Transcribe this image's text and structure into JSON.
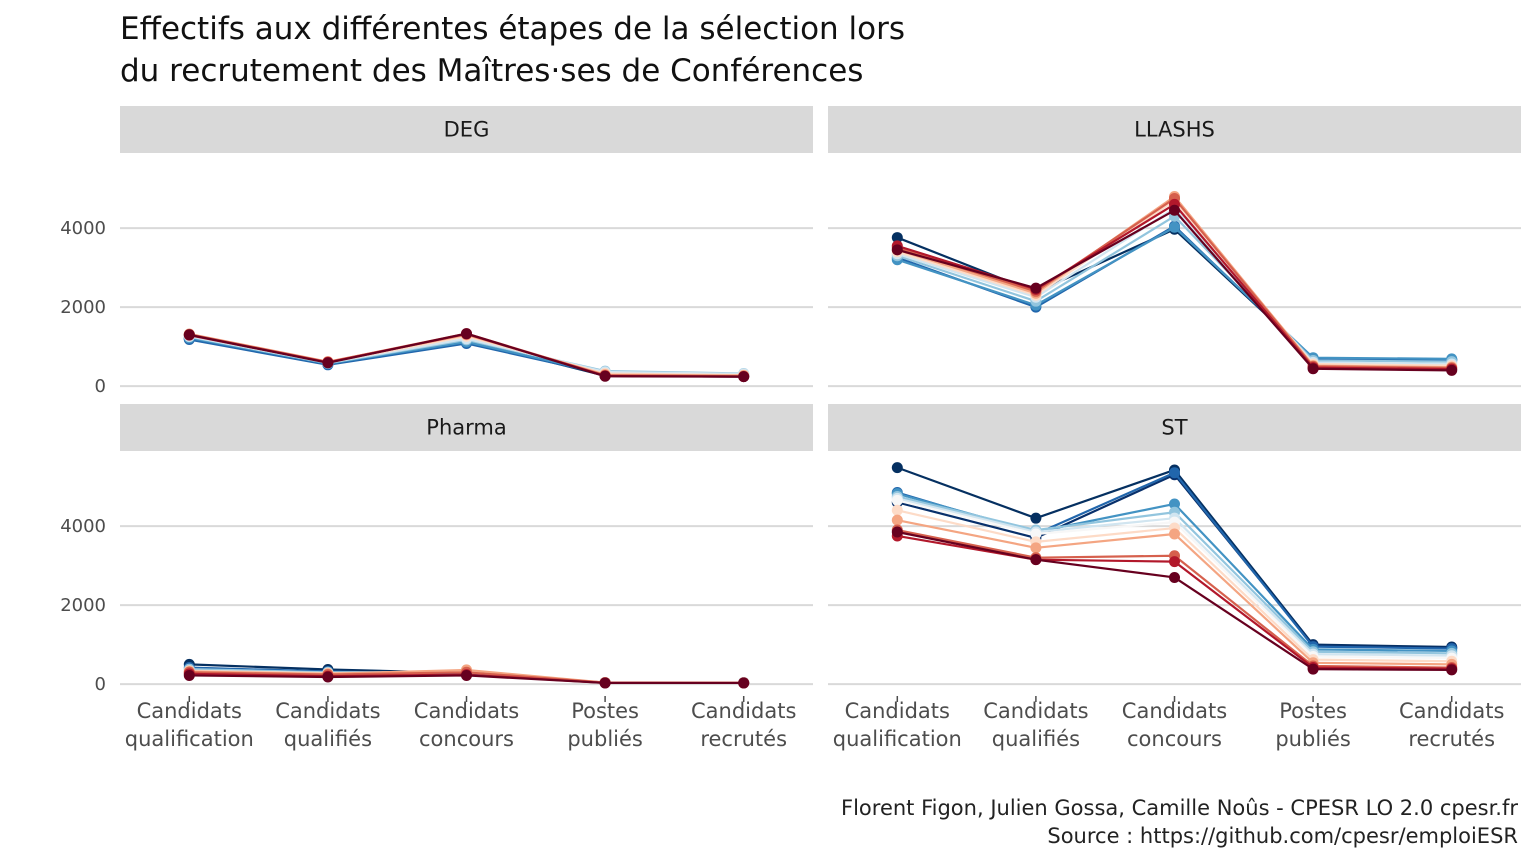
{
  "title_lines": [
    "Effectifs aux différentes étapes de la sélection lors",
    "du recrutement des Maîtres·ses de Conférences"
  ],
  "caption_lines": [
    "Florent Figon, Julien Gossa, Camille Noûs - CPESR LO 2.0 cpesr.fr",
    "Source : https://github.com/cpesr/emploiESR"
  ],
  "chart_data": {
    "type": "line",
    "layout": "facets-2x2",
    "categories": [
      [
        "Candidats",
        "qualification"
      ],
      [
        "Candidats",
        "qualifiés"
      ],
      [
        "Candidats",
        "concours"
      ],
      [
        "Postes",
        "publiés"
      ],
      [
        "Candidats",
        "recrutés"
      ]
    ],
    "y_ticks": [
      0,
      2000,
      4000
    ],
    "ylim": [
      -300,
      5900
    ],
    "grid": true,
    "legend": "none",
    "palette_note": "diverging blue-to-red series colors",
    "facets": [
      {
        "name": "DEG",
        "series": [
          {
            "color": "#053061",
            "values": [
              1200,
              560,
              1150,
              260,
              240
            ]
          },
          {
            "color": "#2166ac",
            "values": [
              1180,
              540,
              1080,
              300,
              260
            ]
          },
          {
            "color": "#4393c3",
            "values": [
              1220,
              570,
              1120,
              320,
              270
            ]
          },
          {
            "color": "#92c5de",
            "values": [
              1250,
              580,
              1170,
              380,
              320
            ]
          },
          {
            "color": "#d1e5f0",
            "values": [
              1260,
              590,
              1200,
              360,
              310
            ]
          },
          {
            "color": "#fddbc7",
            "values": [
              1300,
              600,
              1260,
              320,
              280
            ]
          },
          {
            "color": "#f4a582",
            "values": [
              1320,
              620,
              1300,
              290,
              270
            ]
          },
          {
            "color": "#d6604d",
            "values": [
              1310,
              610,
              1330,
              270,
              250
            ]
          },
          {
            "color": "#b2182b",
            "values": [
              1290,
              600,
              1320,
              260,
              240
            ]
          },
          {
            "color": "#67001f",
            "values": [
              1300,
              590,
              1330,
              250,
              240
            ]
          }
        ]
      },
      {
        "name": "LLASHS",
        "series": [
          {
            "color": "#053061",
            "values": [
              3760,
              2380,
              3970,
              700,
              670
            ]
          },
          {
            "color": "#2166ac",
            "values": [
              3250,
              2000,
              4050,
              680,
              660
            ]
          },
          {
            "color": "#4393c3",
            "values": [
              3200,
              2050,
              4020,
              720,
              690
            ]
          },
          {
            "color": "#92c5de",
            "values": [
              3300,
              2150,
              4300,
              650,
              620
            ]
          },
          {
            "color": "#d1e5f0",
            "values": [
              3350,
              2250,
              4500,
              600,
              560
            ]
          },
          {
            "color": "#fddbc7",
            "values": [
              3400,
              2300,
              4700,
              560,
              520
            ]
          },
          {
            "color": "#f4a582",
            "values": [
              3450,
              2350,
              4800,
              520,
              480
            ]
          },
          {
            "color": "#d6604d",
            "values": [
              3500,
              2400,
              4750,
              500,
              460
            ]
          },
          {
            "color": "#b2182b",
            "values": [
              3550,
              2450,
              4600,
              470,
              430
            ]
          },
          {
            "color": "#67001f",
            "values": [
              3450,
              2480,
              4450,
              440,
              400
            ]
          }
        ]
      },
      {
        "name": "Pharma",
        "series": [
          {
            "color": "#053061",
            "values": [
              500,
              370,
              280,
              40,
              40
            ]
          },
          {
            "color": "#2166ac",
            "values": [
              420,
              320,
              260,
              40,
              35
            ]
          },
          {
            "color": "#92c5de",
            "values": [
              380,
              300,
              300,
              40,
              35
            ]
          },
          {
            "color": "#fddbc7",
            "values": [
              340,
              280,
              330,
              40,
              35
            ]
          },
          {
            "color": "#f4a582",
            "values": [
              320,
              260,
              360,
              40,
              35
            ]
          },
          {
            "color": "#d6604d",
            "values": [
              300,
              240,
              300,
              40,
              30
            ]
          },
          {
            "color": "#b2182b",
            "values": [
              260,
              200,
              240,
              30,
              30
            ]
          },
          {
            "color": "#67001f",
            "values": [
              220,
              180,
              220,
              30,
              30
            ]
          }
        ]
      },
      {
        "name": "ST",
        "series": [
          {
            "color": "#053061",
            "values": [
              5480,
              4200,
              5420,
              1000,
              940
            ]
          },
          {
            "color": "#08306b",
            "values": [
              4600,
              3700,
              5300,
              980,
              920
            ]
          },
          {
            "color": "#2166ac",
            "values": [
              4850,
              3800,
              5350,
              950,
              900
            ]
          },
          {
            "color": "#4393c3",
            "values": [
              4820,
              3850,
              4560,
              880,
              840
            ]
          },
          {
            "color": "#92c5de",
            "values": [
              4750,
              3900,
              4350,
              820,
              780
            ]
          },
          {
            "color": "#d1e5f0",
            "values": [
              4700,
              3850,
              4200,
              760,
              720
            ]
          },
          {
            "color": "#f7f7f7",
            "values": [
              4650,
              3800,
              4100,
              700,
              660
            ]
          },
          {
            "color": "#fddbc7",
            "values": [
              4400,
              3600,
              3950,
              620,
              580
            ]
          },
          {
            "color": "#f4a582",
            "values": [
              4150,
              3450,
              3800,
              540,
              500
            ]
          },
          {
            "color": "#d6604d",
            "values": [
              3900,
              3200,
              3250,
              460,
              420
            ]
          },
          {
            "color": "#b2182b",
            "values": [
              3750,
              3150,
              3100,
              420,
              390
            ]
          },
          {
            "color": "#67001f",
            "values": [
              3850,
              3150,
              2700,
              380,
              360
            ]
          }
        ]
      }
    ]
  }
}
